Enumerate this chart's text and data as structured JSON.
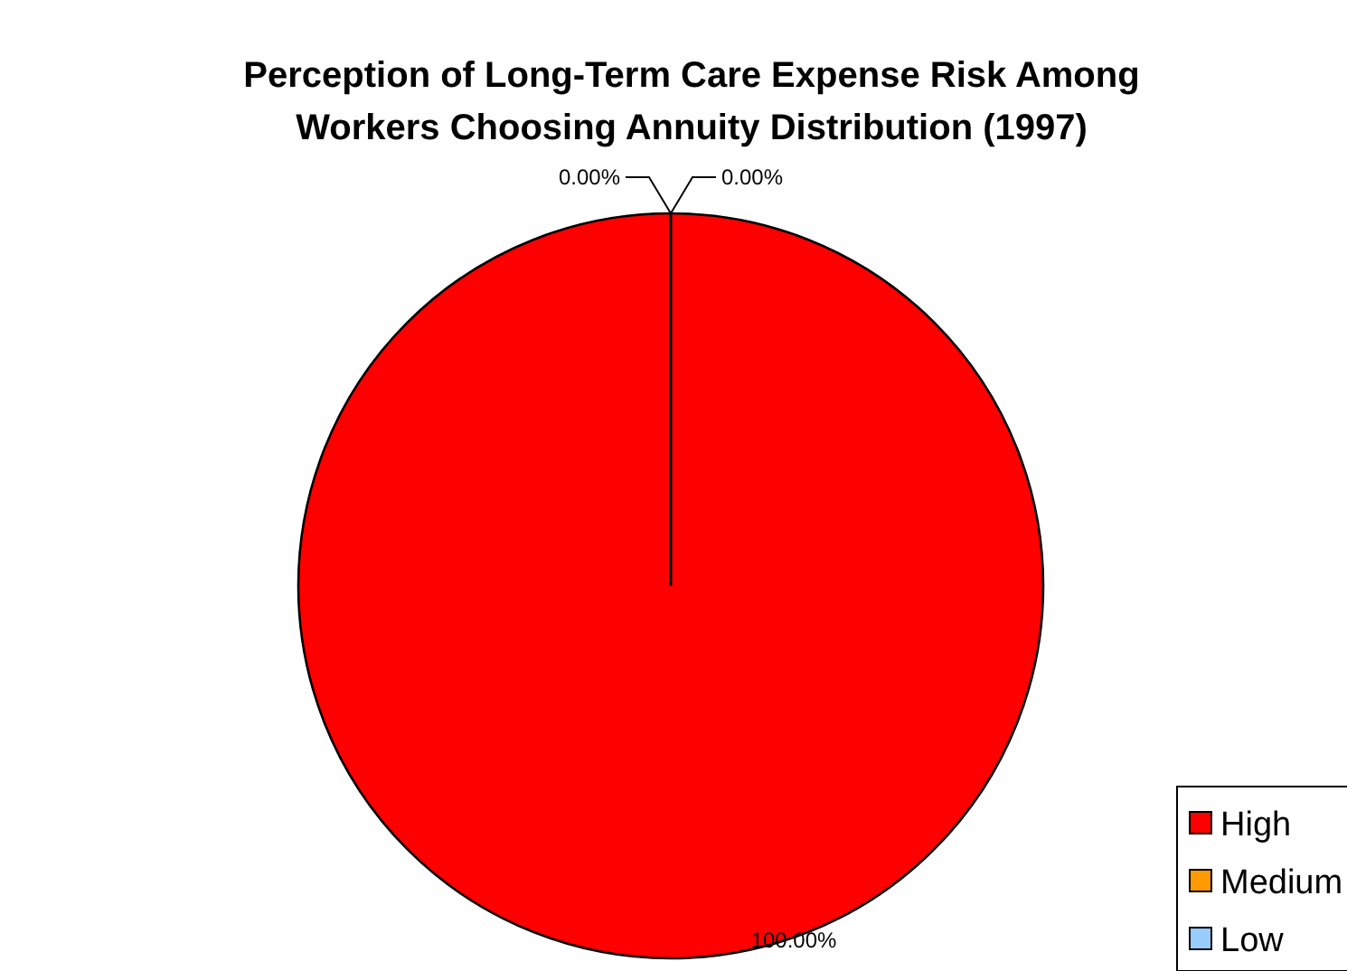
{
  "chart_data": {
    "type": "pie",
    "title": "Perception of Long-Term Care Expense Risk Among Workers Choosing Annuity Distribution (1997)",
    "categories": [
      "High",
      "Medium",
      "Low"
    ],
    "values": [
      100,
      0,
      0
    ],
    "colors": [
      "#ff0000",
      "#ff9900",
      "#99ccff"
    ],
    "value_labels": [
      "100.00%",
      "0.00%",
      "0.00%"
    ],
    "legend": "bottom right"
  }
}
